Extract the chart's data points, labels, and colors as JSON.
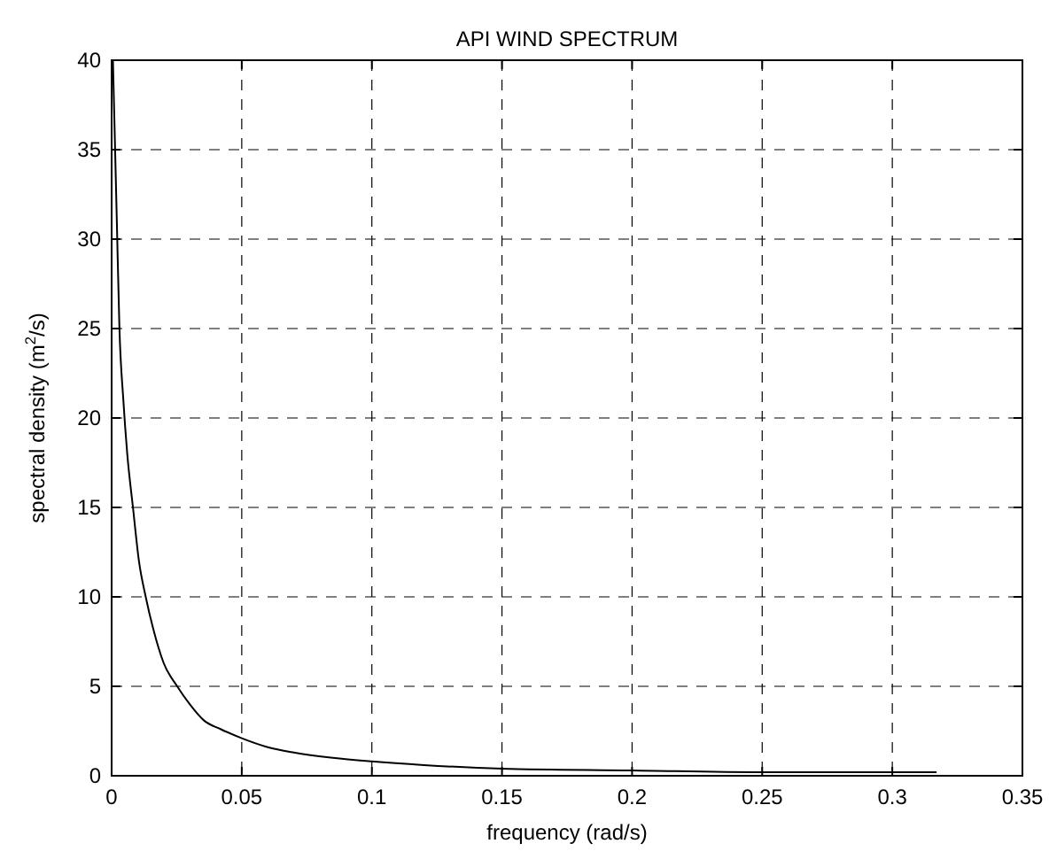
{
  "chart_data": {
    "type": "line",
    "title": "API WIND SPECTRUM",
    "xlabel": "frequency (rad/s)",
    "ylabel": "spectral density (m$^{2}$/s)",
    "series": [
      {
        "color": "#000000",
        "x": [
          0.0005,
          0.001,
          0.002,
          0.003,
          0.0045,
          0.006,
          0.0082,
          0.0105,
          0.0131,
          0.016,
          0.02,
          0.0252,
          0.03,
          0.0354,
          0.042,
          0.05,
          0.06,
          0.07,
          0.085,
          0.1,
          0.12,
          0.15,
          0.2,
          0.25,
          0.317
        ],
        "values": [
          40,
          37,
          31,
          25,
          21,
          18,
          15,
          12,
          10,
          8.2,
          6.3,
          5,
          4,
          3.1,
          2.6,
          2.1,
          1.6,
          1.3,
          1,
          0.8,
          0.6,
          0.4,
          0.3,
          0.2,
          0.2
        ]
      }
    ],
    "xlim": [
      0,
      0.35
    ],
    "xticks": [
      0,
      0.05,
      0.1,
      0.15,
      0.2,
      0.25,
      0.3,
      0.35
    ],
    "ylim": [
      0,
      40
    ],
    "yticks": [
      0,
      5,
      10,
      15,
      20,
      25,
      30,
      35,
      40
    ],
    "grid": true,
    "marker": "none",
    "line_style": "solid"
  }
}
